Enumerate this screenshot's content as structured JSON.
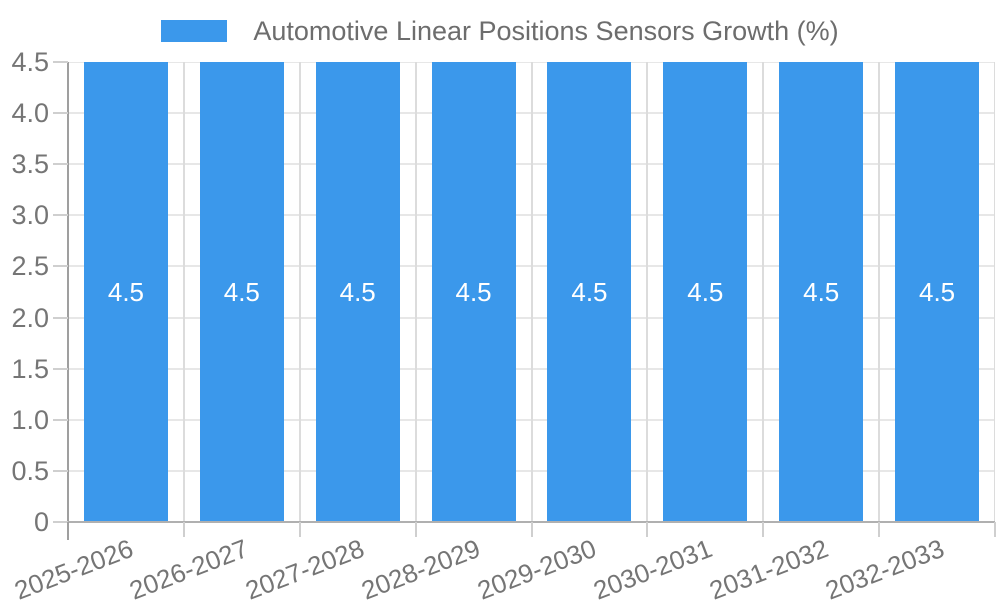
{
  "legend": {
    "label": "Automotive Linear Positions Sensors Growth (%)",
    "swatch_color": "#3b98eb"
  },
  "chart_data": {
    "type": "bar",
    "title": "Automotive Linear Positions Sensors Growth (%)",
    "categories": [
      "2025-2026",
      "2026-2027",
      "2027-2028",
      "2028-2029",
      "2029-2030",
      "2030-2031",
      "2031-2032",
      "2032-2033"
    ],
    "values": [
      4.5,
      4.5,
      4.5,
      4.5,
      4.5,
      4.5,
      4.5,
      4.5
    ],
    "value_labels": [
      "4.5",
      "4.5",
      "4.5",
      "4.5",
      "4.5",
      "4.5",
      "4.5",
      "4.5"
    ],
    "xlabel": "",
    "ylabel": "",
    "ylim": [
      0,
      4.5
    ],
    "yticks": [
      0,
      0.5,
      1,
      1.5,
      2,
      2.5,
      3,
      3.5,
      4,
      4.5
    ],
    "ytick_labels": [
      "0",
      "0.5",
      "1.0",
      "1.5",
      "2.0",
      "2.5",
      "3.0",
      "3.5",
      "4.0",
      "4.5"
    ],
    "grid": true,
    "legend_position": "top",
    "bar_color": "#3b98eb",
    "value_label_color": "#ffffff"
  },
  "colors": {
    "background": "#ffffff",
    "bar": "#3b98eb",
    "axis_text": "#757575",
    "legend_text": "#6d6d6d",
    "gridline_horizontal": "#e7e7e7",
    "gridline_vertical": "#dcdcdc",
    "axis_line": "#9f9f9f",
    "baseline": "#b0b0b0",
    "tick": "#cfcfcf"
  }
}
